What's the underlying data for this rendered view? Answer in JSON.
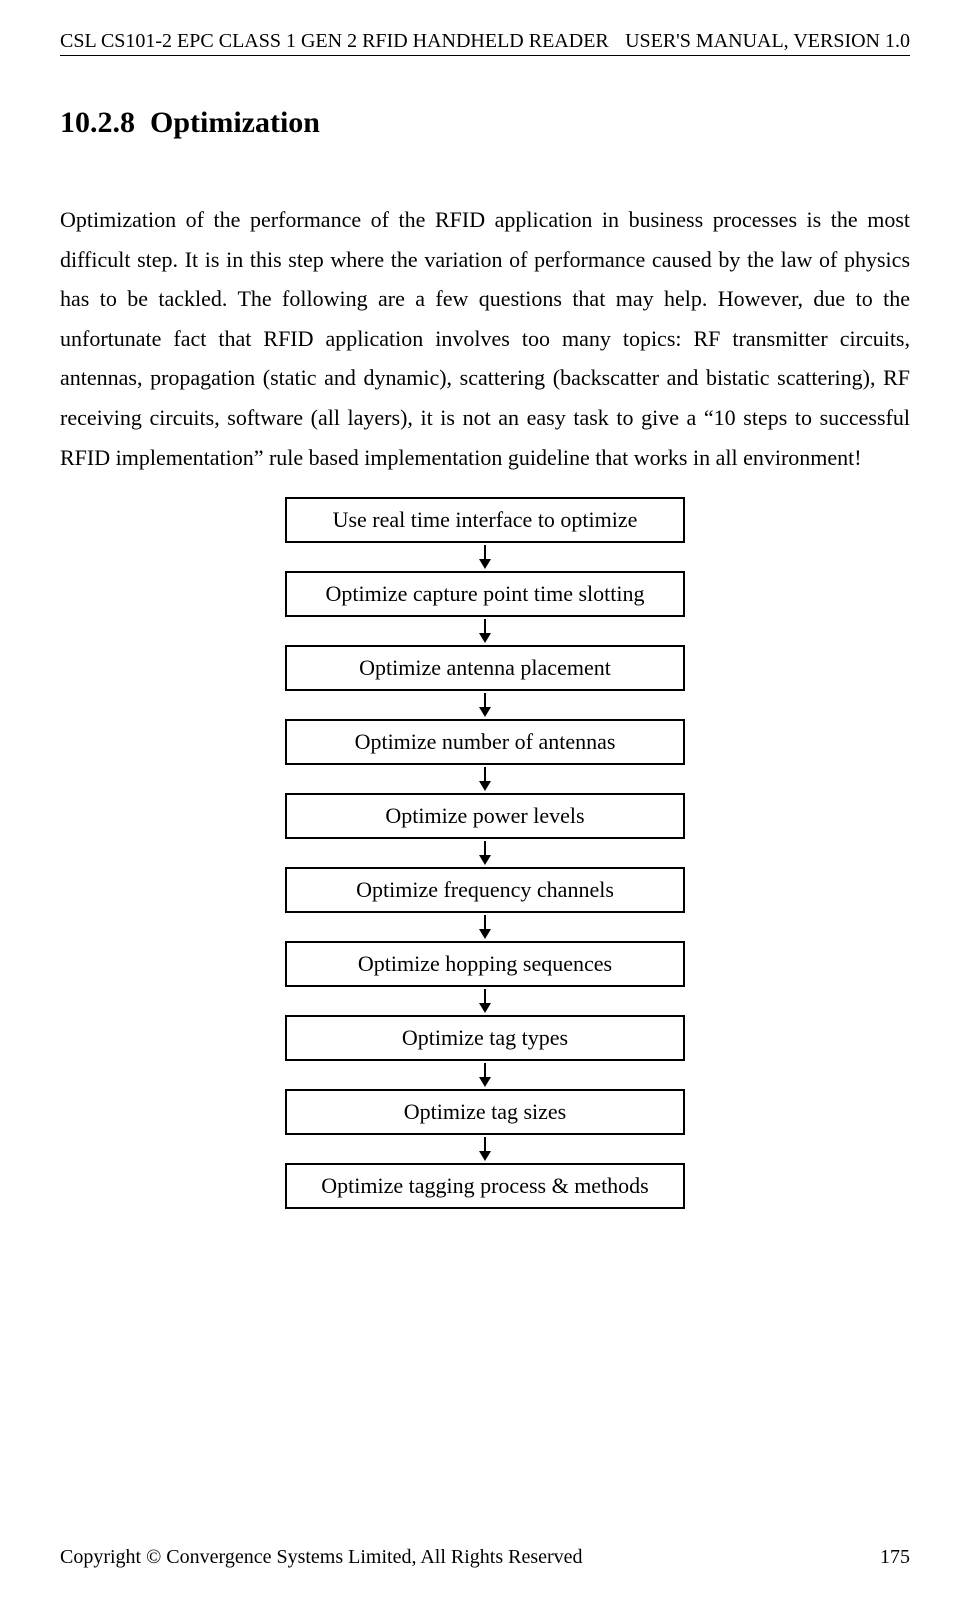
{
  "header": {
    "left": "CSL CS101-2 EPC CLASS 1 GEN 2 RFID HANDHELD READER",
    "right": "USER'S  MANUAL,  VERSION  1.0"
  },
  "section": {
    "number": "10.2.8",
    "title": "Optimization"
  },
  "paragraph": "Optimization of the performance of the RFID application in business processes is the most difficult step.  It is in this step where the variation of performance caused by the law of physics has to be tackled.  The following are a few questions that may help.  However, due to the unfortunate fact that RFID application involves too many topics: RF transmitter circuits, antennas, propagation (static and dynamic), scattering (backscatter and bistatic scattering), RF receiving circuits, software (all layers), it is not an easy task to give a “10 steps to successful RFID implementation” rule based implementation guideline that works in all environment!",
  "flowchart": {
    "type": "flowchart",
    "box_border_color": "#000000",
    "box_background": "#ffffff",
    "box_font_size": 22,
    "arrow_color": "#000000",
    "steps": [
      "Use real time interface to optimize",
      "Optimize capture point time slotting",
      "Optimize antenna placement",
      "Optimize number of antennas",
      "Optimize power levels",
      "Optimize frequency channels",
      "Optimize hopping sequences",
      "Optimize tag types",
      "Optimize tag sizes",
      "Optimize tagging process & methods"
    ]
  },
  "footer": {
    "copyright": "Copyright © Convergence Systems Limited, All Rights Reserved",
    "page_number": "175"
  }
}
